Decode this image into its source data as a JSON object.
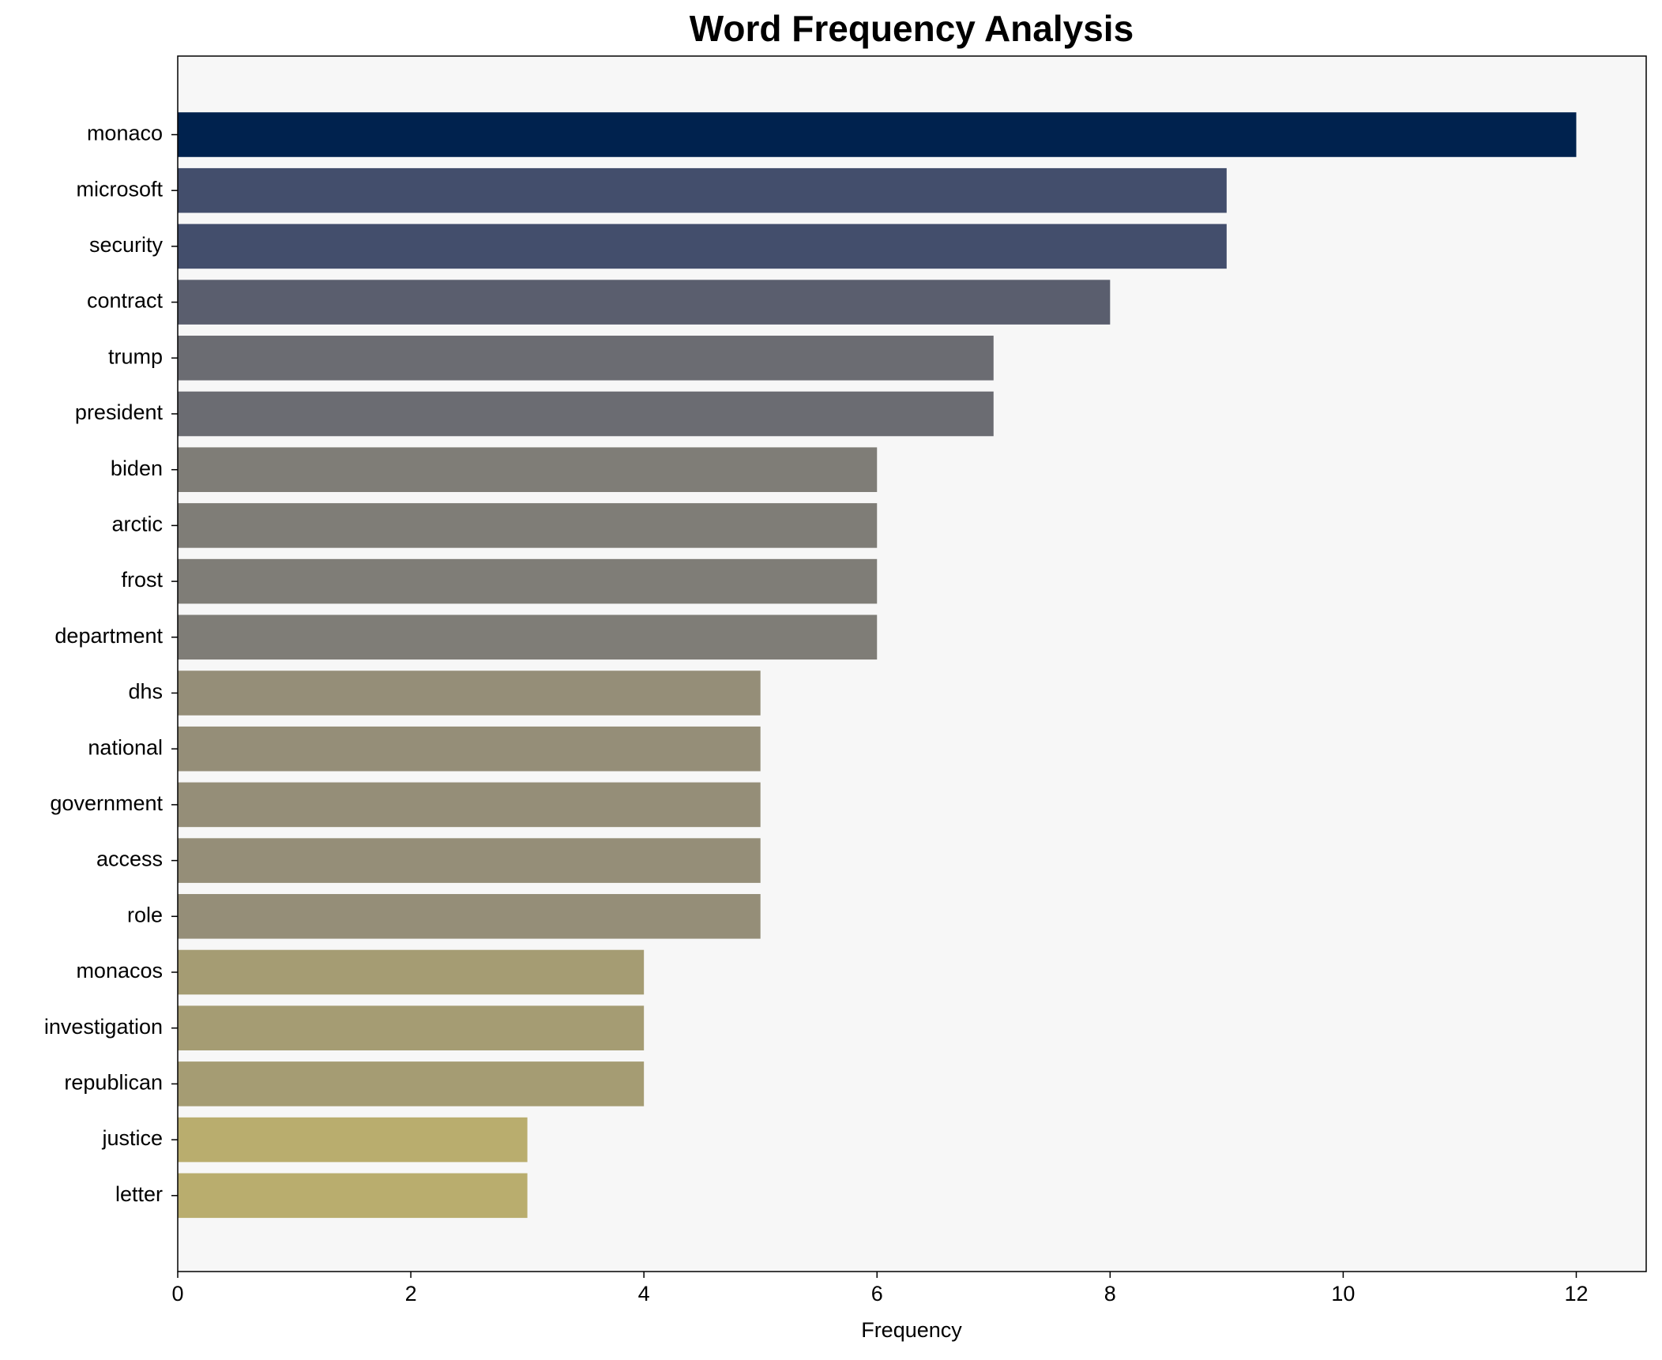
{
  "chart_data": {
    "type": "barh",
    "title": "Word Frequency Analysis",
    "xlabel": "Frequency",
    "categories": [
      "monaco",
      "microsoft",
      "security",
      "contract",
      "trump",
      "president",
      "biden",
      "arctic",
      "frost",
      "department",
      "dhs",
      "national",
      "government",
      "access",
      "role",
      "monacos",
      "investigation",
      "republican",
      "justice",
      "letter"
    ],
    "values": [
      12,
      9,
      9,
      8,
      7,
      7,
      6,
      6,
      6,
      6,
      5,
      5,
      5,
      5,
      5,
      4,
      4,
      4,
      3,
      3
    ],
    "colors": [
      "#00224e",
      "#434e6c",
      "#434e6c",
      "#5a5e6e",
      "#6b6c72",
      "#6b6c72",
      "#7f7d77",
      "#7f7d77",
      "#7f7d77",
      "#7f7d77",
      "#958e78",
      "#958e78",
      "#958e78",
      "#958e78",
      "#958e78",
      "#a59c73",
      "#a59c73",
      "#a59c73",
      "#b9ad6e",
      "#b9ad6e"
    ],
    "xlim": [
      0,
      12.6
    ],
    "xticks": [
      0,
      2,
      4,
      6,
      8,
      10,
      12
    ],
    "background": "#f7f7f7"
  }
}
